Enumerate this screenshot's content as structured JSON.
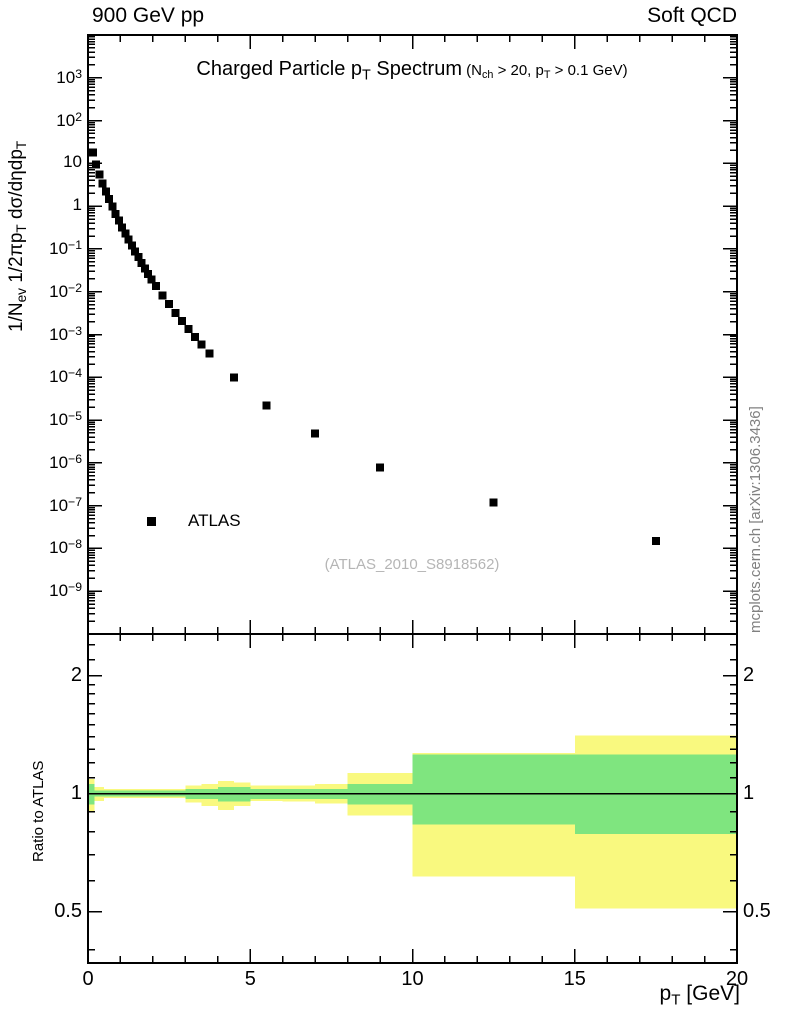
{
  "header": {
    "left": "900 GeV pp",
    "right": "Soft QCD"
  },
  "side_note": "mcplots.cern.ch [arXiv:1306.3436]",
  "chart_data": [
    {
      "type": "scatter",
      "panel": "main",
      "title_segments": [
        {
          "t": "Charged Particle p"
        },
        {
          "t": "T",
          "s": 1
        },
        {
          "t": " Spectrum"
        }
      ],
      "subtitle_segments": [
        {
          "t": " (N"
        },
        {
          "t": "ch",
          "s": 1
        },
        {
          "t": " > 20, p"
        },
        {
          "t": "T",
          "s": 1
        },
        {
          "t": " > 0.1 GeV)"
        }
      ],
      "ylabel_segments": [
        {
          "t": "1/N"
        },
        {
          "t": "ev",
          "s": 1
        },
        {
          "t": " 1/2πp"
        },
        {
          "t": "T",
          "s": 1
        },
        {
          "t": " dσ/dηdp"
        },
        {
          "t": "T",
          "s": 1
        }
      ],
      "x_range": [
        0,
        20
      ],
      "x_major_ticks": [
        0,
        5,
        10,
        15,
        20
      ],
      "x_minor_step": 1,
      "y_log_range_exp": [
        -10,
        4
      ],
      "y_tick_exponents": [
        3,
        2,
        1,
        0,
        -1,
        -2,
        -3,
        -4,
        -5,
        -6,
        -7,
        -8,
        -9
      ],
      "legend": {
        "label": "ATLAS",
        "marker": "filled-square",
        "color": "#000000"
      },
      "watermark": "(ATLAS_2010_S8918562)",
      "series": [
        {
          "name": "ATLAS",
          "marker": "square",
          "color": "#000000",
          "x": [
            0.15,
            0.25,
            0.35,
            0.45,
            0.55,
            0.65,
            0.75,
            0.85,
            0.95,
            1.05,
            1.15,
            1.25,
            1.35,
            1.45,
            1.55,
            1.65,
            1.75,
            1.85,
            1.95,
            2.1,
            2.3,
            2.5,
            2.7,
            2.9,
            3.1,
            3.3,
            3.5,
            3.75,
            4.5,
            5.5,
            7,
            9,
            12.5,
            17.5
          ],
          "y": [
            18,
            9.5,
            5.5,
            3.4,
            2.2,
            1.45,
            0.97,
            0.66,
            0.46,
            0.32,
            0.23,
            0.165,
            0.12,
            0.087,
            0.064,
            0.047,
            0.035,
            0.026,
            0.0195,
            0.0135,
            0.0082,
            0.0051,
            0.0032,
            0.00205,
            0.00133,
            0.00087,
            0.00058,
            0.00036,
            0.0001,
            2.2e-05,
            4.8e-06,
            7.8e-07,
            1.2e-07,
            1.5e-08
          ]
        }
      ]
    },
    {
      "type": "ratio-band",
      "panel": "ratio",
      "ylabel": "Ratio to ATLAS",
      "xlabel_segments": [
        {
          "t": "p"
        },
        {
          "t": "T",
          "s": 1
        },
        {
          "t": "  [GeV]"
        }
      ],
      "x_range": [
        0,
        20
      ],
      "x_tick_labels": [
        "0",
        "5",
        "10",
        "15",
        "20"
      ],
      "y_log_range": [
        0.37,
        2.56
      ],
      "y_major_ticks": [
        2,
        1,
        0.5
      ],
      "y_tick_labels": [
        "2",
        "1",
        "0.5"
      ],
      "y_minor_ticks": [
        0.4,
        0.6,
        0.7,
        0.8,
        0.9,
        1.1,
        1.2,
        1.3,
        1.4,
        1.5,
        1.6,
        1.7,
        1.8,
        1.9,
        2.2,
        2.4
      ],
      "reference_line_y": 1,
      "band_colors": {
        "outer": "#f9f97f",
        "inner": "#7fe57f"
      },
      "bands_outer": [
        [
          0,
          0.2,
          0.9,
          1.09
        ],
        [
          0.2,
          0.5,
          0.96,
          1.04
        ],
        [
          0.5,
          3,
          0.975,
          1.03
        ],
        [
          3,
          3.5,
          0.95,
          1.05
        ],
        [
          3.5,
          4,
          0.93,
          1.06
        ],
        [
          4,
          4.5,
          0.91,
          1.08
        ],
        [
          4.5,
          5,
          0.93,
          1.07
        ],
        [
          5,
          6,
          0.96,
          1.05
        ],
        [
          6,
          7,
          0.955,
          1.05
        ],
        [
          7,
          8,
          0.945,
          1.06
        ],
        [
          8,
          10,
          0.88,
          1.13
        ],
        [
          10,
          15,
          0.615,
          1.27
        ],
        [
          15,
          20,
          0.51,
          1.41
        ]
      ],
      "bands_inner": [
        [
          0,
          0.2,
          0.94,
          1.06
        ],
        [
          0.2,
          3,
          0.985,
          1.02
        ],
        [
          3,
          4,
          0.97,
          1.03
        ],
        [
          4,
          5,
          0.955,
          1.04
        ],
        [
          5,
          8,
          0.97,
          1.03
        ],
        [
          8,
          10,
          0.94,
          1.06
        ],
        [
          10,
          15,
          0.835,
          1.26
        ],
        [
          15,
          20,
          0.79,
          1.26
        ]
      ]
    }
  ]
}
